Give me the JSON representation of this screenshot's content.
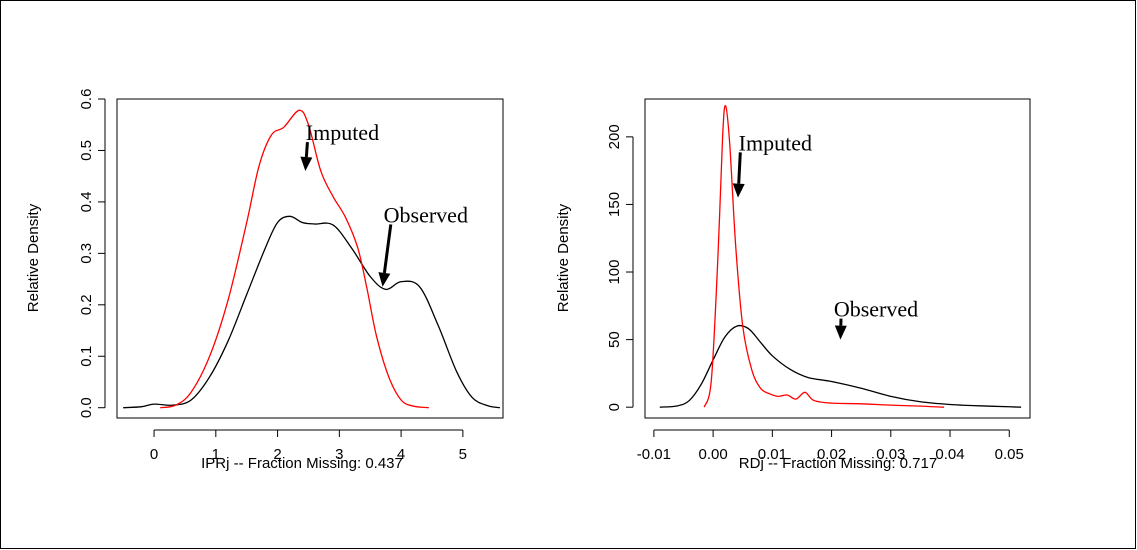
{
  "chart_data": [
    {
      "type": "line",
      "ylabel": "Relative Density",
      "xlabel": "IPRj -- Fraction Missing: 0.437",
      "xlabel_parts": [
        "IPRj",
        "--",
        "Fraction Missing: 0.437"
      ],
      "xlim": [
        -0.6,
        5.65
      ],
      "ylim": [
        -0.02,
        0.6
      ],
      "x_ticks": [
        0,
        1,
        2,
        3,
        4,
        5
      ],
      "x_tick_labels": [
        "0",
        "1",
        "2",
        "3",
        "4",
        "5"
      ],
      "y_ticks": [
        0.0,
        0.1,
        0.2,
        0.3,
        0.4,
        0.5,
        0.6
      ],
      "y_tick_labels": [
        "0.0",
        "0.1",
        "0.2",
        "0.3",
        "0.4",
        "0.5",
        "0.6"
      ],
      "grid": false,
      "series": [
        {
          "name": "Observed",
          "color": "#000000",
          "points": [
            [
              -0.5,
              0.0
            ],
            [
              -0.2,
              0.002
            ],
            [
              0.0,
              0.007
            ],
            [
              0.3,
              0.005
            ],
            [
              0.6,
              0.015
            ],
            [
              0.9,
              0.06
            ],
            [
              1.2,
              0.13
            ],
            [
              1.5,
              0.22
            ],
            [
              1.8,
              0.31
            ],
            [
              2.0,
              0.36
            ],
            [
              2.2,
              0.372
            ],
            [
              2.4,
              0.36
            ],
            [
              2.6,
              0.357
            ],
            [
              2.9,
              0.355
            ],
            [
              3.2,
              0.31
            ],
            [
              3.5,
              0.255
            ],
            [
              3.75,
              0.23
            ],
            [
              4.0,
              0.245
            ],
            [
              4.3,
              0.235
            ],
            [
              4.6,
              0.16
            ],
            [
              4.9,
              0.07
            ],
            [
              5.15,
              0.02
            ],
            [
              5.4,
              0.004
            ],
            [
              5.6,
              0.0
            ]
          ]
        },
        {
          "name": "Imputed",
          "color": "#ff0000",
          "points": [
            [
              0.1,
              0.0
            ],
            [
              0.35,
              0.005
            ],
            [
              0.6,
              0.03
            ],
            [
              0.9,
              0.1
            ],
            [
              1.2,
              0.21
            ],
            [
              1.5,
              0.36
            ],
            [
              1.7,
              0.47
            ],
            [
              1.9,
              0.53
            ],
            [
              2.1,
              0.545
            ],
            [
              2.35,
              0.578
            ],
            [
              2.5,
              0.55
            ],
            [
              2.7,
              0.46
            ],
            [
              2.9,
              0.41
            ],
            [
              3.1,
              0.37
            ],
            [
              3.3,
              0.31
            ],
            [
              3.45,
              0.23
            ],
            [
              3.6,
              0.14
            ],
            [
              3.8,
              0.06
            ],
            [
              4.0,
              0.015
            ],
            [
              4.2,
              0.003
            ],
            [
              4.45,
              0.0
            ]
          ]
        }
      ],
      "annotations": [
        {
          "text": "Imputed",
          "x": 3.05,
          "y": 0.52,
          "arrow_to": [
            2.45,
            0.46
          ]
        },
        {
          "text": "Observed",
          "x": 4.4,
          "y": 0.36,
          "arrow_to": [
            3.7,
            0.235
          ]
        }
      ]
    },
    {
      "type": "line",
      "ylabel": "Relative Density",
      "xlabel": "RDj -- Fraction Missing: 0.717",
      "xlabel_parts": [
        "RDj",
        "--",
        "Fraction Missing: 0.717"
      ],
      "xlim": [
        -0.0115,
        0.0535
      ],
      "ylim": [
        -8,
        228
      ],
      "x_ticks": [
        -0.01,
        0.0,
        0.01,
        0.02,
        0.03,
        0.04,
        0.05
      ],
      "x_tick_labels": [
        "-0.01",
        "0.00",
        "0.01",
        "0.02",
        "0.03",
        "0.04",
        "0.05"
      ],
      "y_ticks": [
        0,
        50,
        100,
        150,
        200
      ],
      "y_tick_labels": [
        "0",
        "50",
        "100",
        "150",
        "200"
      ],
      "grid": false,
      "series": [
        {
          "name": "Observed",
          "color": "#000000",
          "points": [
            [
              -0.009,
              0.0
            ],
            [
              -0.006,
              1
            ],
            [
              -0.004,
              5
            ],
            [
              -0.002,
              17
            ],
            [
              0.0,
              35
            ],
            [
              0.002,
              52
            ],
            [
              0.004,
              60
            ],
            [
              0.006,
              58
            ],
            [
              0.008,
              48
            ],
            [
              0.01,
              38
            ],
            [
              0.013,
              28
            ],
            [
              0.016,
              22
            ],
            [
              0.02,
              19
            ],
            [
              0.025,
              14
            ],
            [
              0.03,
              8
            ],
            [
              0.035,
              4
            ],
            [
              0.04,
              2
            ],
            [
              0.045,
              1
            ],
            [
              0.05,
              0.3
            ],
            [
              0.052,
              0
            ]
          ]
        },
        {
          "name": "Imputed",
          "color": "#ff0000",
          "points": [
            [
              -0.0015,
              0
            ],
            [
              -0.0003,
              20
            ],
            [
              0.0008,
              110
            ],
            [
              0.0016,
              200
            ],
            [
              0.0021,
              223
            ],
            [
              0.0028,
              195
            ],
            [
              0.0038,
              120
            ],
            [
              0.005,
              60
            ],
            [
              0.0065,
              28
            ],
            [
              0.008,
              14
            ],
            [
              0.0095,
              10
            ],
            [
              0.011,
              8
            ],
            [
              0.0125,
              9
            ],
            [
              0.014,
              6
            ],
            [
              0.0155,
              11
            ],
            [
              0.017,
              5
            ],
            [
              0.02,
              3
            ],
            [
              0.025,
              2.5
            ],
            [
              0.03,
              1.5
            ],
            [
              0.035,
              0.8
            ],
            [
              0.039,
              0
            ]
          ]
        }
      ],
      "annotations": [
        {
          "text": "Imputed",
          "x": 0.0105,
          "y": 190,
          "arrow_to": [
            0.0042,
            155
          ]
        },
        {
          "text": "Observed",
          "x": 0.0275,
          "y": 67,
          "arrow_to": [
            0.0215,
            50
          ]
        }
      ]
    }
  ]
}
